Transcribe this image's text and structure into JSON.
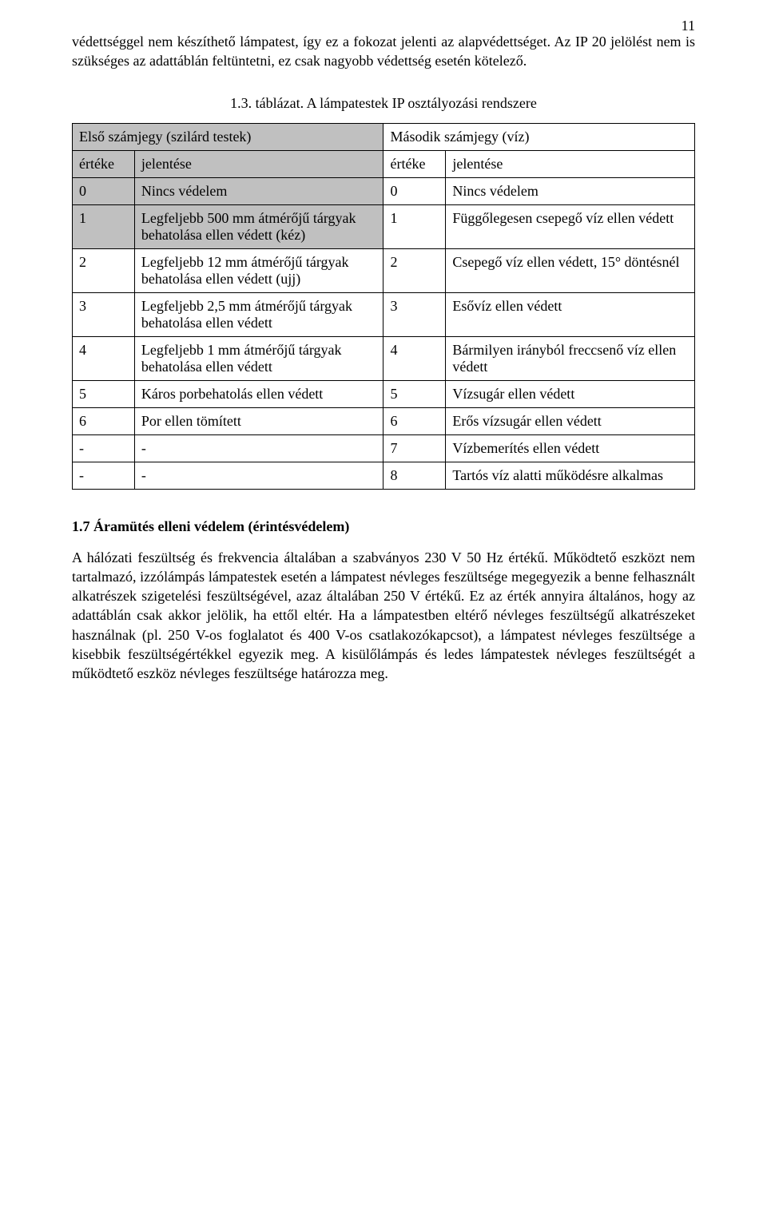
{
  "page_number": "11",
  "intro_paragraph": "védettséggel nem készíthető lámpatest, így ez a fokozat jelenti az alapvédettséget. Az IP 20 jelölést nem is szükséges az adattáblán feltüntetni, ez csak nagyobb védettség esetén kötelező.",
  "table_caption": "1.3. táblázat. A lámpatestek IP osztályozási rendszere",
  "table": {
    "group_headers": [
      "Első számjegy (szilárd testek)",
      "Második számjegy (víz)"
    ],
    "sub_headers": [
      "értéke",
      "jelentése",
      "értéke",
      "jelentése"
    ],
    "rows": [
      {
        "shaded": true,
        "c0": "0",
        "c1": "Nincs védelem",
        "c2": "0",
        "c3": "Nincs védelem"
      },
      {
        "shaded": true,
        "c0": "1",
        "c1": "Legfeljebb 500 mm átmérőjű tárgyak behatolása ellen védett (kéz)",
        "c2": "1",
        "c3": "Függőlegesen csepegő víz ellen védett"
      },
      {
        "shaded": false,
        "c0": "2",
        "c1": "Legfeljebb 12 mm átmérőjű tárgyak behatolása ellen védett (ujj)",
        "c2": "2",
        "c3": "Csepegő víz ellen védett, 15° döntésnél"
      },
      {
        "shaded": false,
        "c0": "3",
        "c1": "Legfeljebb 2,5 mm átmérőjű tárgyak behatolása ellen védett",
        "c2": "3",
        "c3": "Esővíz ellen védett"
      },
      {
        "shaded": false,
        "c0": "4",
        "c1": "Legfeljebb 1 mm átmérőjű tárgyak behatolása ellen védett",
        "c2": "4",
        "c3": "Bármilyen irányból freccsenő víz ellen védett"
      },
      {
        "shaded": false,
        "c0": "5",
        "c1": "Káros porbehatolás ellen védett",
        "c2": "5",
        "c3": "Vízsugár ellen védett"
      },
      {
        "shaded": false,
        "c0": "6",
        "c1": "Por ellen tömített",
        "c2": "6",
        "c3": "Erős vízsugár ellen védett"
      },
      {
        "shaded": false,
        "c0": "-",
        "c1": "-",
        "c2": "7",
        "c3": "Vízbemerítés ellen védett"
      },
      {
        "shaded": false,
        "c0": "-",
        "c1": "-",
        "c2": "8",
        "c3": "Tartós víz alatti működésre alkalmas"
      }
    ]
  },
  "section_heading": "1.7 Áramütés elleni védelem (érintésvédelem)",
  "body_paragraph": "A hálózati feszültség és frekvencia általában a szabványos 230 V 50 Hz értékű. Működtető eszközt nem tartalmazó, izzólámpás lámpatestek esetén a lámpatest névleges feszültsége megegyezik a benne felhasznált alkatrészek szigetelési feszültségével, azaz általában 250 V értékű. Ez az érték annyira általános, hogy az adattáblán csak akkor jelölik, ha ettől eltér. Ha a lámpatestben eltérő névleges feszültségű alkatrészeket használnak (pl. 250 V-os foglalatot és 400 V-os csatlakozókapcsot), a lámpatest névleges feszültsége a kisebbik feszültségértékkel egyezik meg. A kisülőlámpás és ledes lámpatestek névleges feszültségét a működtető eszköz névleges feszültsége határozza meg.",
  "colors": {
    "text": "#000000",
    "background": "#ffffff",
    "border": "#000000",
    "shaded_row": "#c0c0c0"
  },
  "typography": {
    "body_fontsize_pt": 13,
    "font_family": "Times New Roman"
  }
}
